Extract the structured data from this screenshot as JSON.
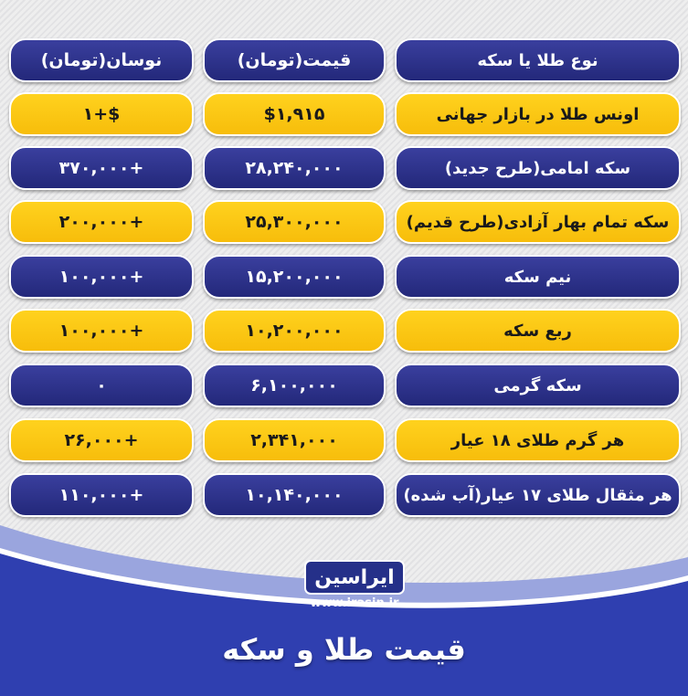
{
  "header": {
    "type": "نوع طلا یا سکه",
    "price": "قیمت(تومان)",
    "change": "نوسان(تومان)"
  },
  "rows": [
    {
      "name": "اونس طلا در بازار جهانی",
      "price": "$۱,۹۱۵",
      "change": "$+۱",
      "color": "yellow"
    },
    {
      "name": "سکه امامی(طرح جدید)",
      "price": "۲۸,۲۴۰,۰۰۰",
      "change": "+۳۷۰,۰۰۰",
      "color": "navy"
    },
    {
      "name": "سکه تمام بهار آزادی(طرح قدیم)",
      "price": "۲۵,۳۰۰,۰۰۰",
      "change": "+۲۰۰,۰۰۰",
      "color": "yellow"
    },
    {
      "name": "نیم سکه",
      "price": "۱۵,۲۰۰,۰۰۰",
      "change": "+۱۰۰,۰۰۰",
      "color": "navy"
    },
    {
      "name": "ربع سکه",
      "price": "۱۰,۲۰۰,۰۰۰",
      "change": "+۱۰۰,۰۰۰",
      "color": "yellow"
    },
    {
      "name": "سکه گرمی",
      "price": "۶,۱۰۰,۰۰۰",
      "change": "۰",
      "color": "navy"
    },
    {
      "name": "هر گرم طلای ۱۸ عیار",
      "price": "۲,۳۴۱,۰۰۰",
      "change": "+۲۶,۰۰۰",
      "color": "yellow"
    },
    {
      "name": "هر مثقال طلای ۱۷ عیار(آب شده)",
      "price": "۱۰,۱۴۰,۰۰۰",
      "change": "+۱۱۰,۰۰۰",
      "color": "navy"
    }
  ],
  "footer": {
    "logo": "ایراسین",
    "url": "www.irasin.ir",
    "title": "قیمت طلا و سکه"
  },
  "colors": {
    "navy": "#2a2f8a",
    "yellow": "#fcc419",
    "blue": "#2f3fb0"
  }
}
